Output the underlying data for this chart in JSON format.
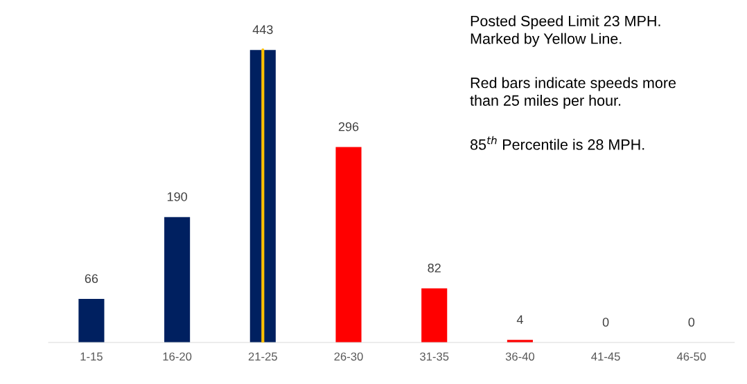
{
  "chart_data": {
    "type": "bar",
    "categories": [
      "1-15",
      "16-20",
      "21-25",
      "26-30",
      "31-35",
      "36-40",
      "41-45",
      "46-50"
    ],
    "values": [
      66,
      190,
      443,
      296,
      82,
      4,
      0,
      0
    ],
    "colors": [
      "#002060",
      "#002060",
      "#002060",
      "#ff0000",
      "#ff0000",
      "#ff0000",
      "#ff0000",
      "#ff0000"
    ],
    "data_labels": true,
    "ref_lines": [
      {
        "axis": "x",
        "value": "21-25",
        "color": "#ffc000"
      }
    ],
    "annotations": [
      "Posted Speed Limit 23 MPH.\nMarked by Yellow Line.",
      "Red bars indicate speeds more\nthan 25 miles per hour.",
      "85$^{th}$ Percentile is 28 MPH."
    ],
    "tick_labels": "x",
    "grid": false,
    "legend": false
  }
}
